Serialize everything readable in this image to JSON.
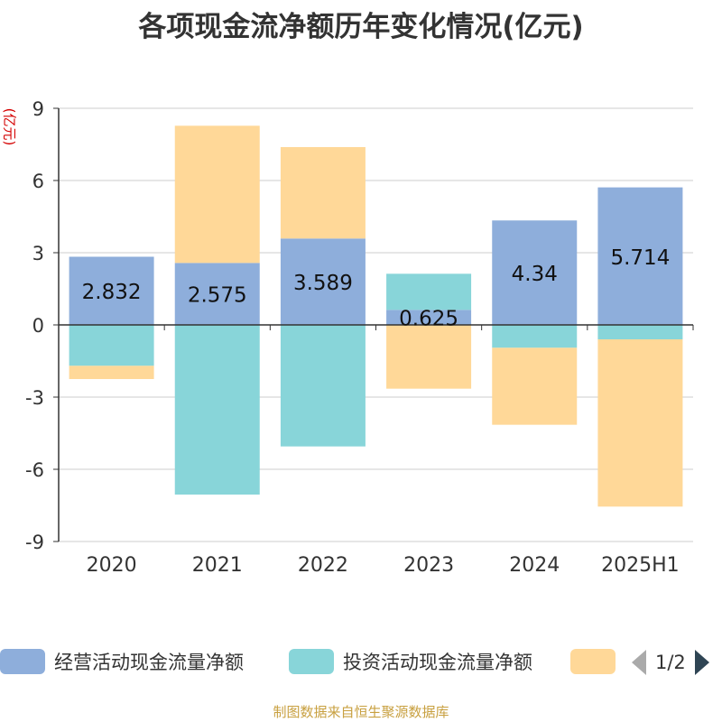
{
  "title": "各项现金流净额历年变化情况(亿元)",
  "source": "制图数据来自恒生聚源数据库",
  "pager": {
    "text": "1/2"
  },
  "chart_data": {
    "type": "bar",
    "stacked": true,
    "title": "各项现金流净额历年变化情况(亿元)",
    "ylabel": "(亿元)",
    "categories": [
      "2020",
      "2021",
      "2022",
      "2023",
      "2024",
      "2025H1"
    ],
    "ylim": [
      -9,
      9
    ],
    "yticks": [
      -9,
      -6,
      -3,
      0,
      3,
      6,
      9
    ],
    "grid": true,
    "legend_position": "bottom",
    "series": [
      {
        "name": "经营活动现金流量净额",
        "color": "#8eaedb",
        "values": [
          2.832,
          2.575,
          3.589,
          0.625,
          4.34,
          5.714
        ],
        "show_labels": true
      },
      {
        "name": "投资活动现金流量净额",
        "color": "#88d5d9",
        "values": [
          -1.7,
          -7.05,
          -5.05,
          1.5,
          -0.95,
          -0.6
        ],
        "show_labels": false
      },
      {
        "name": "",
        "color": "#ffd898",
        "values": [
          -0.55,
          5.7,
          3.8,
          -2.65,
          -3.2,
          -6.95
        ],
        "show_labels": false
      }
    ]
  }
}
